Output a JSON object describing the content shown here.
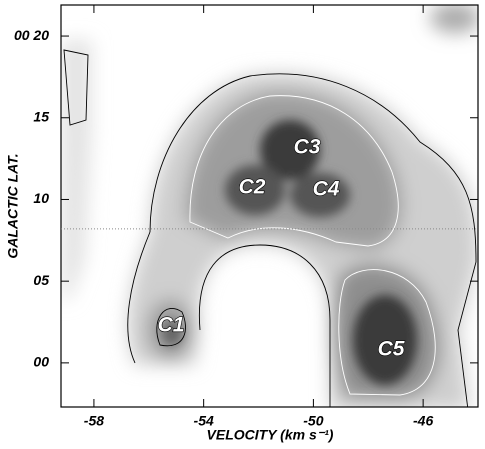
{
  "chart_data": {
    "type": "contour",
    "xlabel": "VELOCITY  (km s⁻¹)",
    "ylabel": "GALACTIC LAT.",
    "xlim": [
      -59.2,
      -44.0
    ],
    "ylim": [
      -2.7,
      21.9
    ],
    "xticks": [
      -58,
      -54,
      -50,
      -46
    ],
    "yticks": [
      {
        "value": 0,
        "label": "00"
      },
      {
        "value": 5,
        "label": "05"
      },
      10,
      15,
      {
        "value": 20,
        "label": "00 20"
      }
    ],
    "reference_line_y": 8.2,
    "annotations": [
      "C1",
      "C2",
      "C3",
      "C4",
      "C5"
    ]
  }
}
